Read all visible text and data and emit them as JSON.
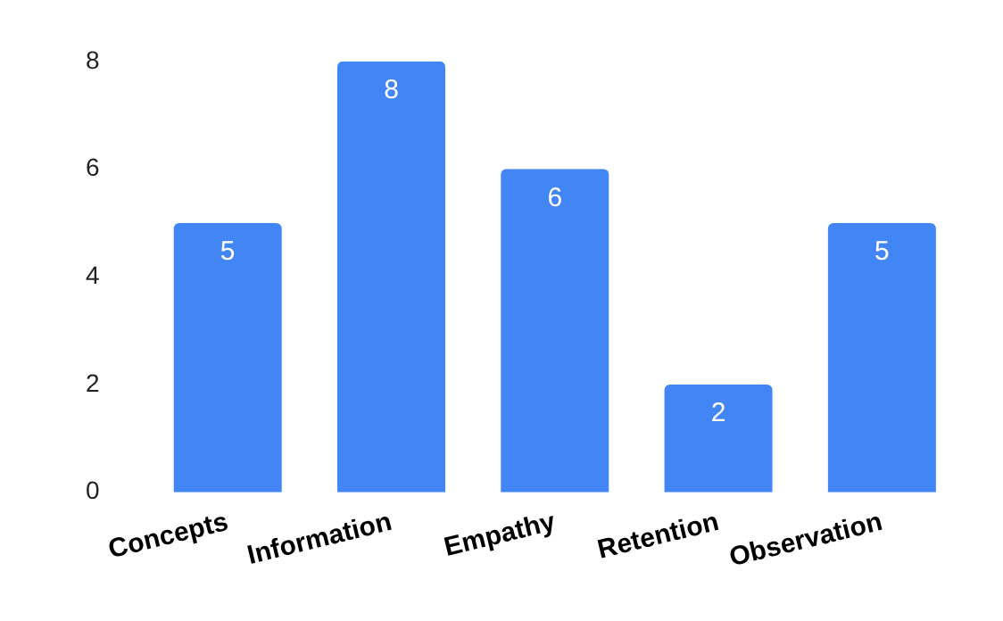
{
  "chart_data": {
    "type": "bar",
    "categories": [
      "Concepts",
      "Information",
      "Empathy",
      "Retention",
      "Observation"
    ],
    "values": [
      5,
      8,
      6,
      2,
      5
    ],
    "color": "#4285f4",
    "ylim": [
      0,
      8
    ],
    "yticks": [
      0,
      2,
      4,
      6,
      8
    ],
    "grid": false,
    "data_labels": true
  }
}
